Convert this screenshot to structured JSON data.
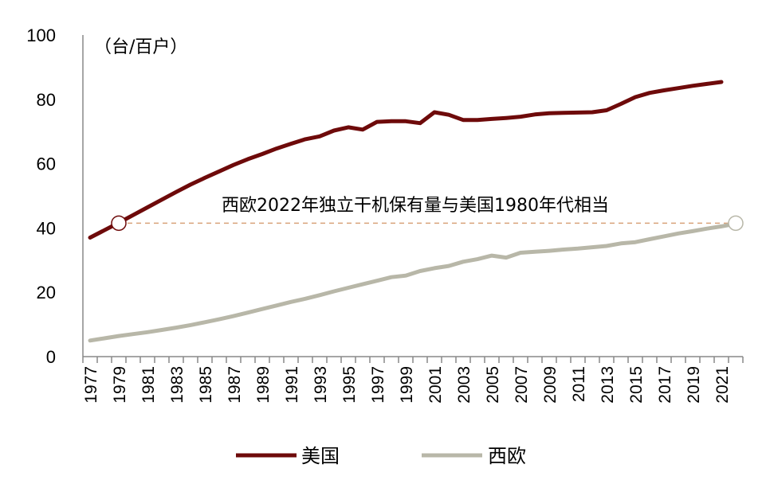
{
  "chart_data": {
    "type": "line",
    "unit_label": "（台/百户）",
    "annotation": "西欧2022年独立干机保有量与美国1980年代相当",
    "reference_value": 41.5,
    "ylim": [
      0,
      100
    ],
    "yticks": [
      0,
      20,
      40,
      60,
      80,
      100
    ],
    "x": [
      1977,
      1978,
      1979,
      1980,
      1981,
      1982,
      1983,
      1984,
      1985,
      1986,
      1987,
      1988,
      1989,
      1990,
      1991,
      1992,
      1993,
      1994,
      1995,
      1996,
      1997,
      1998,
      1999,
      2000,
      2001,
      2002,
      2003,
      2004,
      2005,
      2006,
      2007,
      2008,
      2009,
      2010,
      2011,
      2012,
      2013,
      2014,
      2015,
      2016,
      2017,
      2018,
      2019,
      2020,
      2021,
      2022
    ],
    "xtick_labels": [
      "1977",
      "1979",
      "1981",
      "1983",
      "1985",
      "1987",
      "1989",
      "1991",
      "1993",
      "1995",
      "1997",
      "1999",
      "2001",
      "2003",
      "2005",
      "2007",
      "2009",
      "2011",
      "2013",
      "2015",
      "2017",
      "2019",
      "2021"
    ],
    "series": [
      {
        "name": "美国",
        "color": "#6e0a0a",
        "marker_year": 1979,
        "values": [
          37,
          39.3,
          41.6,
          44,
          46.4,
          48.8,
          51.2,
          53.5,
          55.6,
          57.6,
          59.6,
          61.4,
          63,
          64.7,
          66.2,
          67.6,
          68.5,
          70.3,
          71.3,
          70.6,
          73,
          73.2,
          73.2,
          72.6,
          76,
          75.2,
          73.6,
          73.6,
          73.9,
          74.2,
          74.6,
          75.3,
          75.7,
          75.8,
          75.9,
          76,
          76.6,
          78.6,
          80.7,
          82,
          82.8,
          83.5,
          84.2,
          84.8,
          85.4,
          null
        ]
      },
      {
        "name": "西欧",
        "color": "#b8b7a8",
        "marker_year": 2022,
        "values": [
          5,
          5.7,
          6.4,
          7,
          7.6,
          8.3,
          9,
          9.8,
          10.7,
          11.6,
          12.6,
          13.7,
          14.8,
          15.9,
          17,
          18,
          19.1,
          20.3,
          21.4,
          22.5,
          23.6,
          24.7,
          25.2,
          26.6,
          27.5,
          28.2,
          29.5,
          30.3,
          31.4,
          30.8,
          32.3,
          32.6,
          32.9,
          33.3,
          33.6,
          34,
          34.4,
          35.2,
          35.6,
          36.5,
          37.4,
          38.3,
          39,
          39.8,
          40.5,
          41.3
        ]
      }
    ],
    "grid": false,
    "legend_position": "bottom"
  }
}
